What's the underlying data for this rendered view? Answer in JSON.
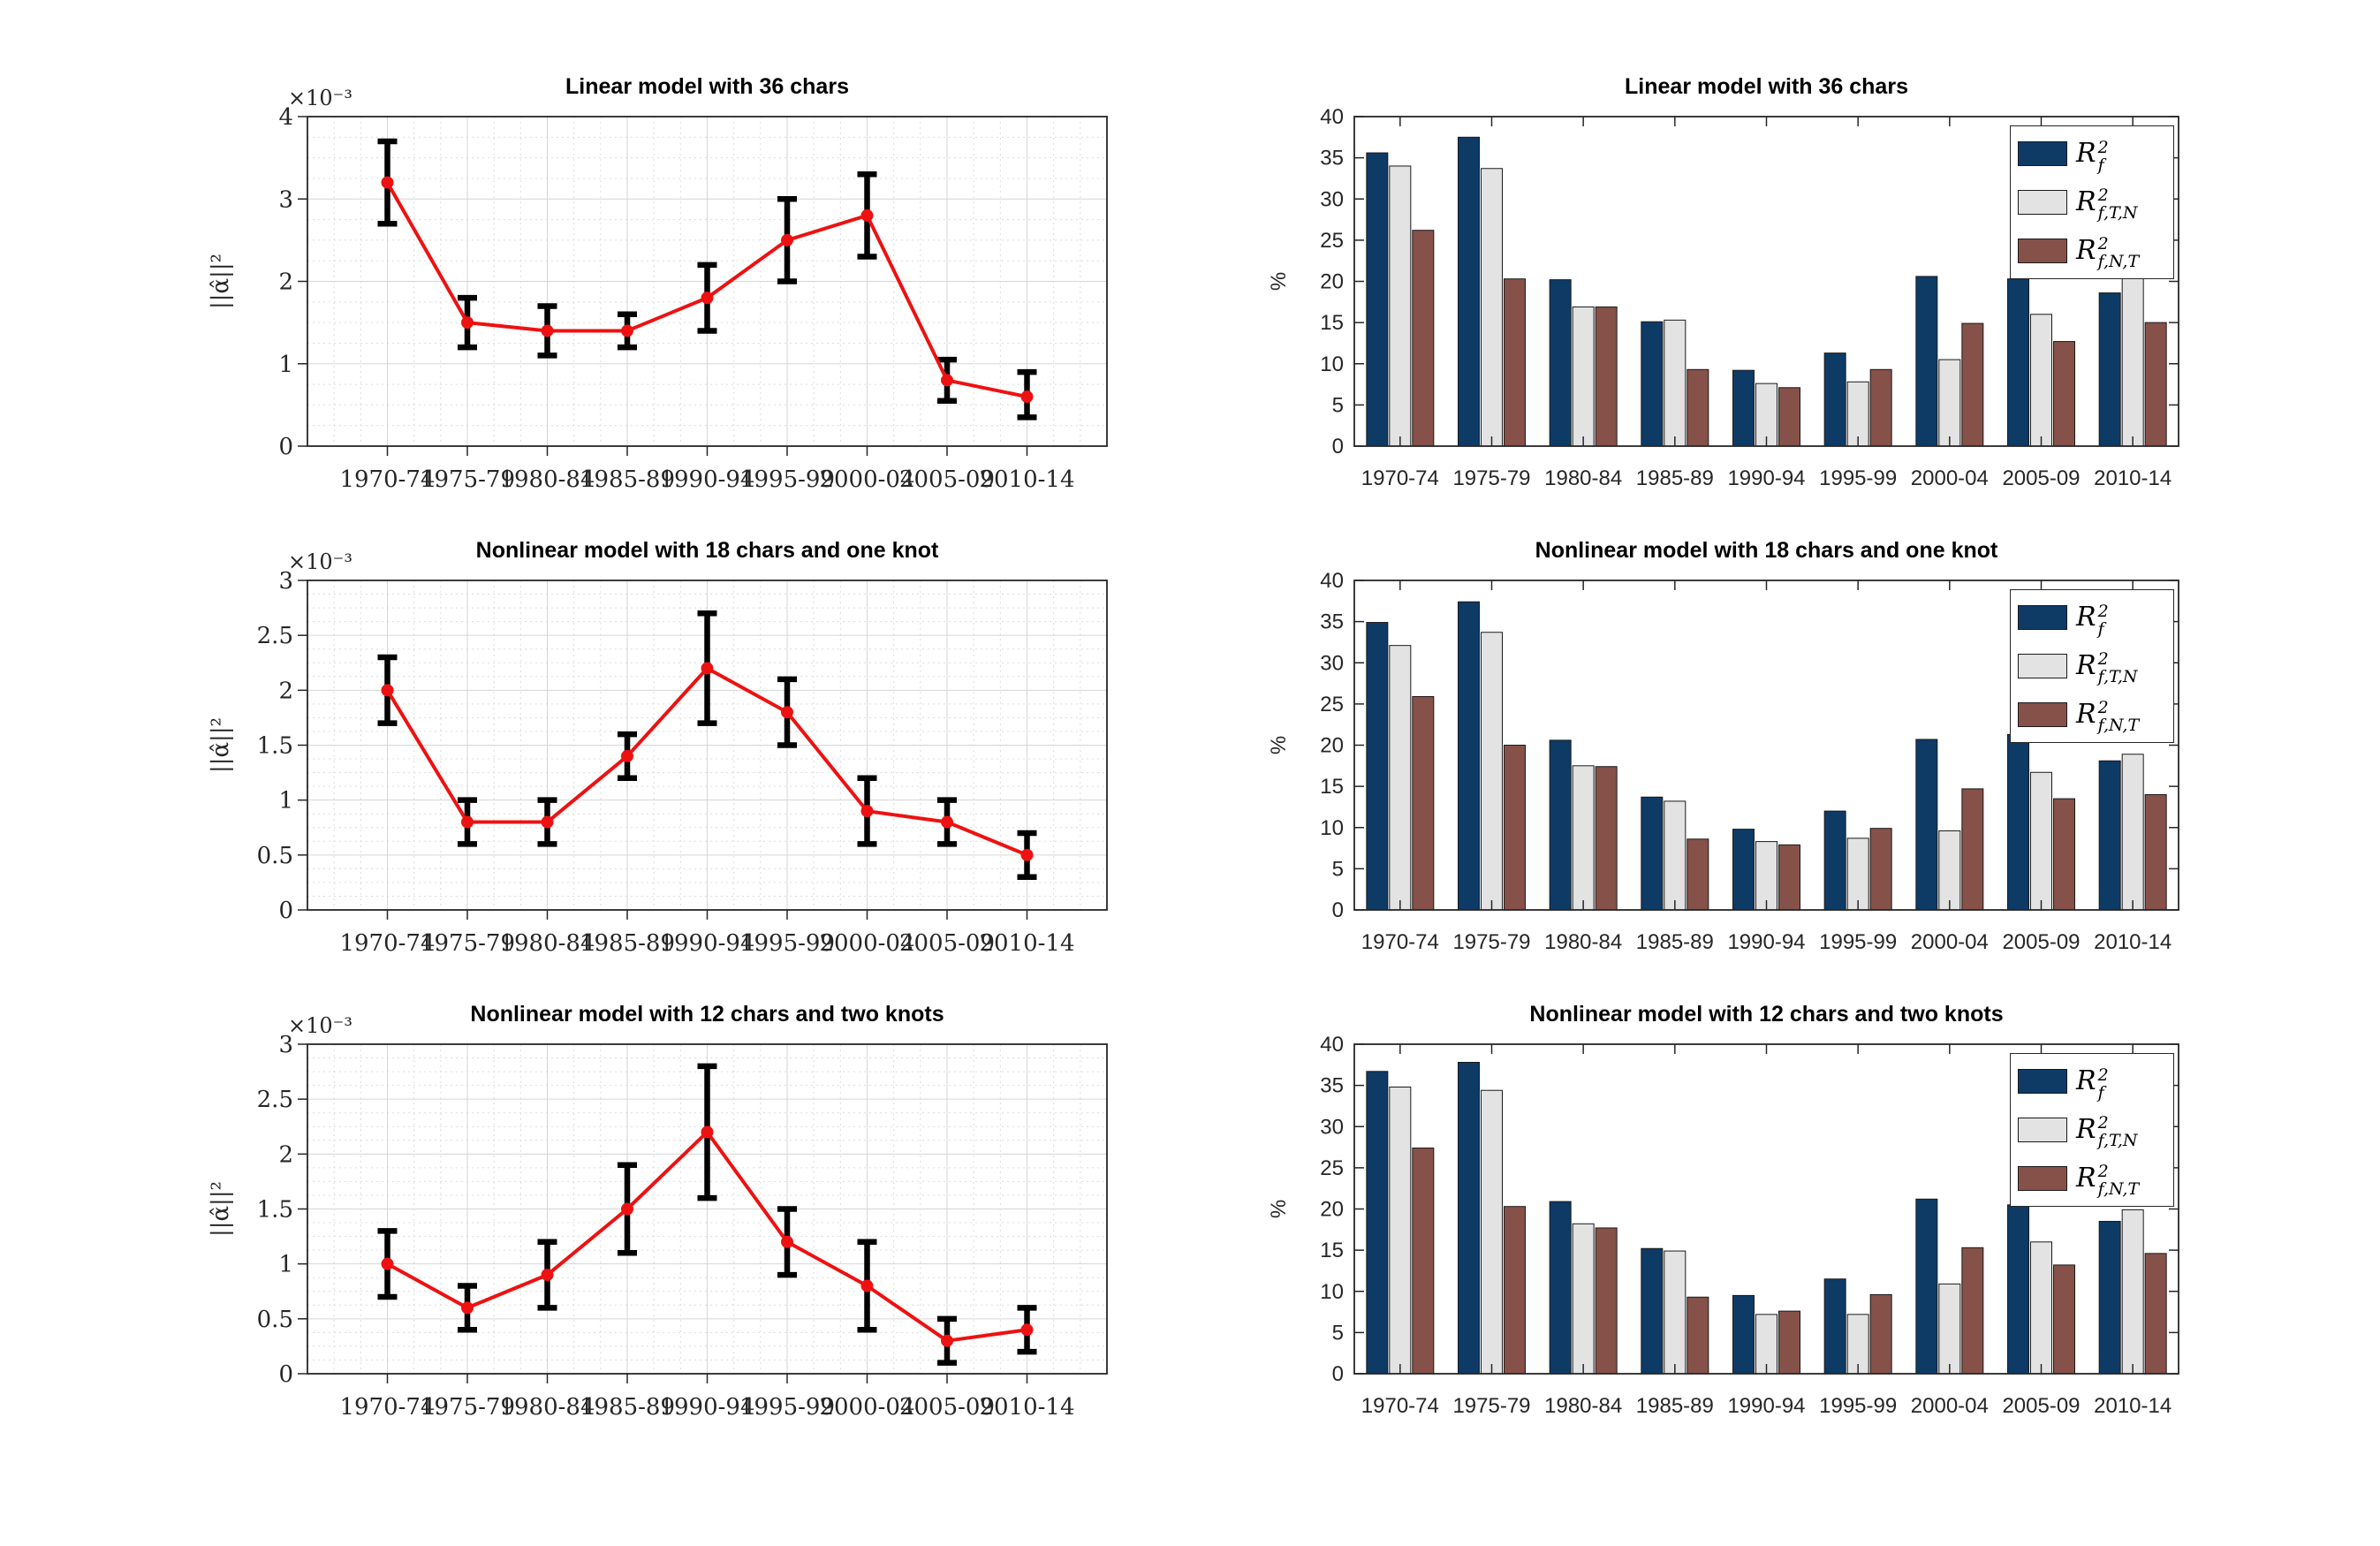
{
  "colors": {
    "navy": "#0e3a66",
    "light_gray": "#e3e3e3",
    "brown": "#855149",
    "line_red": "#ee1111",
    "error_black": "#000000",
    "axis": "#262626"
  },
  "legend": [
    {
      "base": "R",
      "sup": "2",
      "sub": "f",
      "color": "#0e3a66"
    },
    {
      "base": "R",
      "sup": "2",
      "sub": "f,T,N",
      "color": "#e3e3e3"
    },
    {
      "base": "R",
      "sup": "2",
      "sub": "f,N,T",
      "color": "#855149"
    }
  ],
  "chart_data": [
    {
      "type": "line",
      "title": "Linear model with 36 chars",
      "ylabel": "||α̂||²",
      "scale_label": "×10⁻³",
      "ylim": [
        0,
        4
      ],
      "yticks": [
        0,
        1,
        2,
        3,
        4
      ],
      "categories": [
        "1970-74",
        "1975-79",
        "1980-84",
        "1985-89",
        "1990-94",
        "1995-99",
        "2000-04",
        "2005-09",
        "2010-14"
      ],
      "values": [
        3.2,
        1.5,
        1.4,
        1.4,
        1.8,
        2.5,
        2.8,
        0.8,
        0.6
      ],
      "err_low": [
        2.7,
        1.2,
        1.1,
        1.2,
        1.4,
        2.0,
        2.3,
        0.55,
        0.35
      ],
      "err_high": [
        3.7,
        1.8,
        1.7,
        1.6,
        2.2,
        3.0,
        3.3,
        1.05,
        0.9
      ]
    },
    {
      "type": "bar",
      "title": "Linear model with 36 chars",
      "ylabel": "%",
      "ylim": [
        0,
        40
      ],
      "yticks": [
        0,
        5,
        10,
        15,
        20,
        25,
        30,
        35,
        40
      ],
      "categories": [
        "1970-74",
        "1975-79",
        "1980-84",
        "1985-89",
        "1990-94",
        "1995-99",
        "2000-04",
        "2005-09",
        "2010-14"
      ],
      "series": [
        {
          "name": {
            "base": "R",
            "sup": "2",
            "sub": "f"
          },
          "color": "#0e3a66",
          "values": [
            35.6,
            37.5,
            20.2,
            15.1,
            9.2,
            11.3,
            20.6,
            20.3,
            18.6
          ]
        },
        {
          "name": {
            "base": "R",
            "sup": "2",
            "sub": "f,T,N"
          },
          "color": "#e3e3e3",
          "values": [
            34.0,
            33.7,
            16.9,
            15.3,
            7.6,
            7.8,
            10.5,
            16.0,
            20.6
          ]
        },
        {
          "name": {
            "base": "R",
            "sup": "2",
            "sub": "f,N,T"
          },
          "color": "#855149",
          "values": [
            26.2,
            20.3,
            16.9,
            9.3,
            7.1,
            9.3,
            14.9,
            12.7,
            15.0
          ]
        }
      ]
    },
    {
      "type": "line",
      "title": "Nonlinear model with 18 chars and one knot",
      "ylabel": "||α̂||²",
      "scale_label": "×10⁻³",
      "ylim": [
        0,
        3
      ],
      "yticks": [
        0,
        0.5,
        1,
        1.5,
        2,
        2.5,
        3
      ],
      "categories": [
        "1970-74",
        "1975-79",
        "1980-84",
        "1985-89",
        "1990-94",
        "1995-99",
        "2000-04",
        "2005-09",
        "2010-14"
      ],
      "values": [
        2.0,
        0.8,
        0.8,
        1.4,
        2.2,
        1.8,
        0.9,
        0.8,
        0.5
      ],
      "err_low": [
        1.7,
        0.6,
        0.6,
        1.2,
        1.7,
        1.5,
        0.6,
        0.6,
        0.3
      ],
      "err_high": [
        2.3,
        1.0,
        1.0,
        1.6,
        2.7,
        2.1,
        1.2,
        1.0,
        0.7
      ]
    },
    {
      "type": "bar",
      "title": "Nonlinear model with 18 chars and one knot",
      "ylabel": "%",
      "ylim": [
        0,
        40
      ],
      "yticks": [
        0,
        5,
        10,
        15,
        20,
        25,
        30,
        35,
        40
      ],
      "categories": [
        "1970-74",
        "1975-79",
        "1980-84",
        "1985-89",
        "1990-94",
        "1995-99",
        "2000-04",
        "2005-09",
        "2010-14"
      ],
      "series": [
        {
          "name": {
            "base": "R",
            "sup": "2",
            "sub": "f"
          },
          "color": "#0e3a66",
          "values": [
            34.9,
            37.4,
            20.6,
            13.7,
            9.8,
            12.0,
            20.7,
            21.3,
            18.1
          ]
        },
        {
          "name": {
            "base": "R",
            "sup": "2",
            "sub": "f,T,N"
          },
          "color": "#e3e3e3",
          "values": [
            32.1,
            33.7,
            17.5,
            13.2,
            8.3,
            8.7,
            9.6,
            16.7,
            18.9
          ]
        },
        {
          "name": {
            "base": "R",
            "sup": "2",
            "sub": "f,N,T"
          },
          "color": "#855149",
          "values": [
            25.9,
            20.0,
            17.4,
            8.6,
            7.9,
            9.9,
            14.7,
            13.5,
            14.0
          ]
        }
      ]
    },
    {
      "type": "line",
      "title": "Nonlinear model with 12 chars and two knots",
      "ylabel": "||α̂||²",
      "scale_label": "×10⁻³",
      "ylim": [
        0,
        3
      ],
      "yticks": [
        0,
        0.5,
        1,
        1.5,
        2,
        2.5,
        3
      ],
      "categories": [
        "1970-74",
        "1975-79",
        "1980-84",
        "1985-89",
        "1990-94",
        "1995-99",
        "2000-04",
        "2005-09",
        "2010-14"
      ],
      "values": [
        1.0,
        0.6,
        0.9,
        1.5,
        2.2,
        1.2,
        0.8,
        0.3,
        0.4
      ],
      "err_low": [
        0.7,
        0.4,
        0.6,
        1.1,
        1.6,
        0.9,
        0.4,
        0.1,
        0.2
      ],
      "err_high": [
        1.3,
        0.8,
        1.2,
        1.9,
        2.8,
        1.5,
        1.2,
        0.5,
        0.6
      ]
    },
    {
      "type": "bar",
      "title": "Nonlinear model with 12 chars and two knots",
      "ylabel": "%",
      "ylim": [
        0,
        40
      ],
      "yticks": [
        0,
        5,
        10,
        15,
        20,
        25,
        30,
        35,
        40
      ],
      "categories": [
        "1970-74",
        "1975-79",
        "1980-84",
        "1985-89",
        "1990-94",
        "1995-99",
        "2000-04",
        "2005-09",
        "2010-14"
      ],
      "series": [
        {
          "name": {
            "base": "R",
            "sup": "2",
            "sub": "f"
          },
          "color": "#0e3a66",
          "values": [
            36.7,
            37.8,
            20.9,
            15.2,
            9.5,
            11.5,
            21.2,
            20.5,
            18.5
          ]
        },
        {
          "name": {
            "base": "R",
            "sup": "2",
            "sub": "f,T,N"
          },
          "color": "#e3e3e3",
          "values": [
            34.8,
            34.4,
            18.2,
            14.9,
            7.2,
            7.2,
            10.9,
            16.0,
            19.9
          ]
        },
        {
          "name": {
            "base": "R",
            "sup": "2",
            "sub": "f,N,T"
          },
          "color": "#855149",
          "values": [
            27.4,
            20.3,
            17.7,
            9.3,
            7.6,
            9.6,
            15.3,
            13.2,
            14.6
          ]
        }
      ]
    }
  ]
}
